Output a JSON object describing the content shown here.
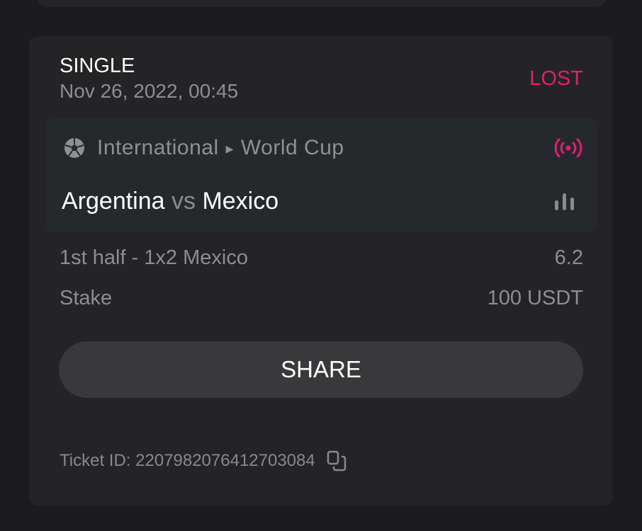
{
  "bet": {
    "type": "SINGLE",
    "date": "Nov 26, 2022, 00:45",
    "status": "LOST",
    "status_color": "#e0206f",
    "event": {
      "sport_icon": "soccer-ball-icon",
      "category": "International",
      "league": "World Cup",
      "home": "Argentina",
      "vs": "vs",
      "away": "Mexico",
      "live_icon": "live-broadcast-icon",
      "stats_icon": "bar-chart-icon"
    },
    "selection": "1st half - 1x2 Mexico",
    "odds": "6.2",
    "stake_label": "Stake",
    "stake_value": "100 USDT",
    "share_label": "SHARE",
    "ticket_id": "Ticket ID: 2207982076412703084"
  }
}
